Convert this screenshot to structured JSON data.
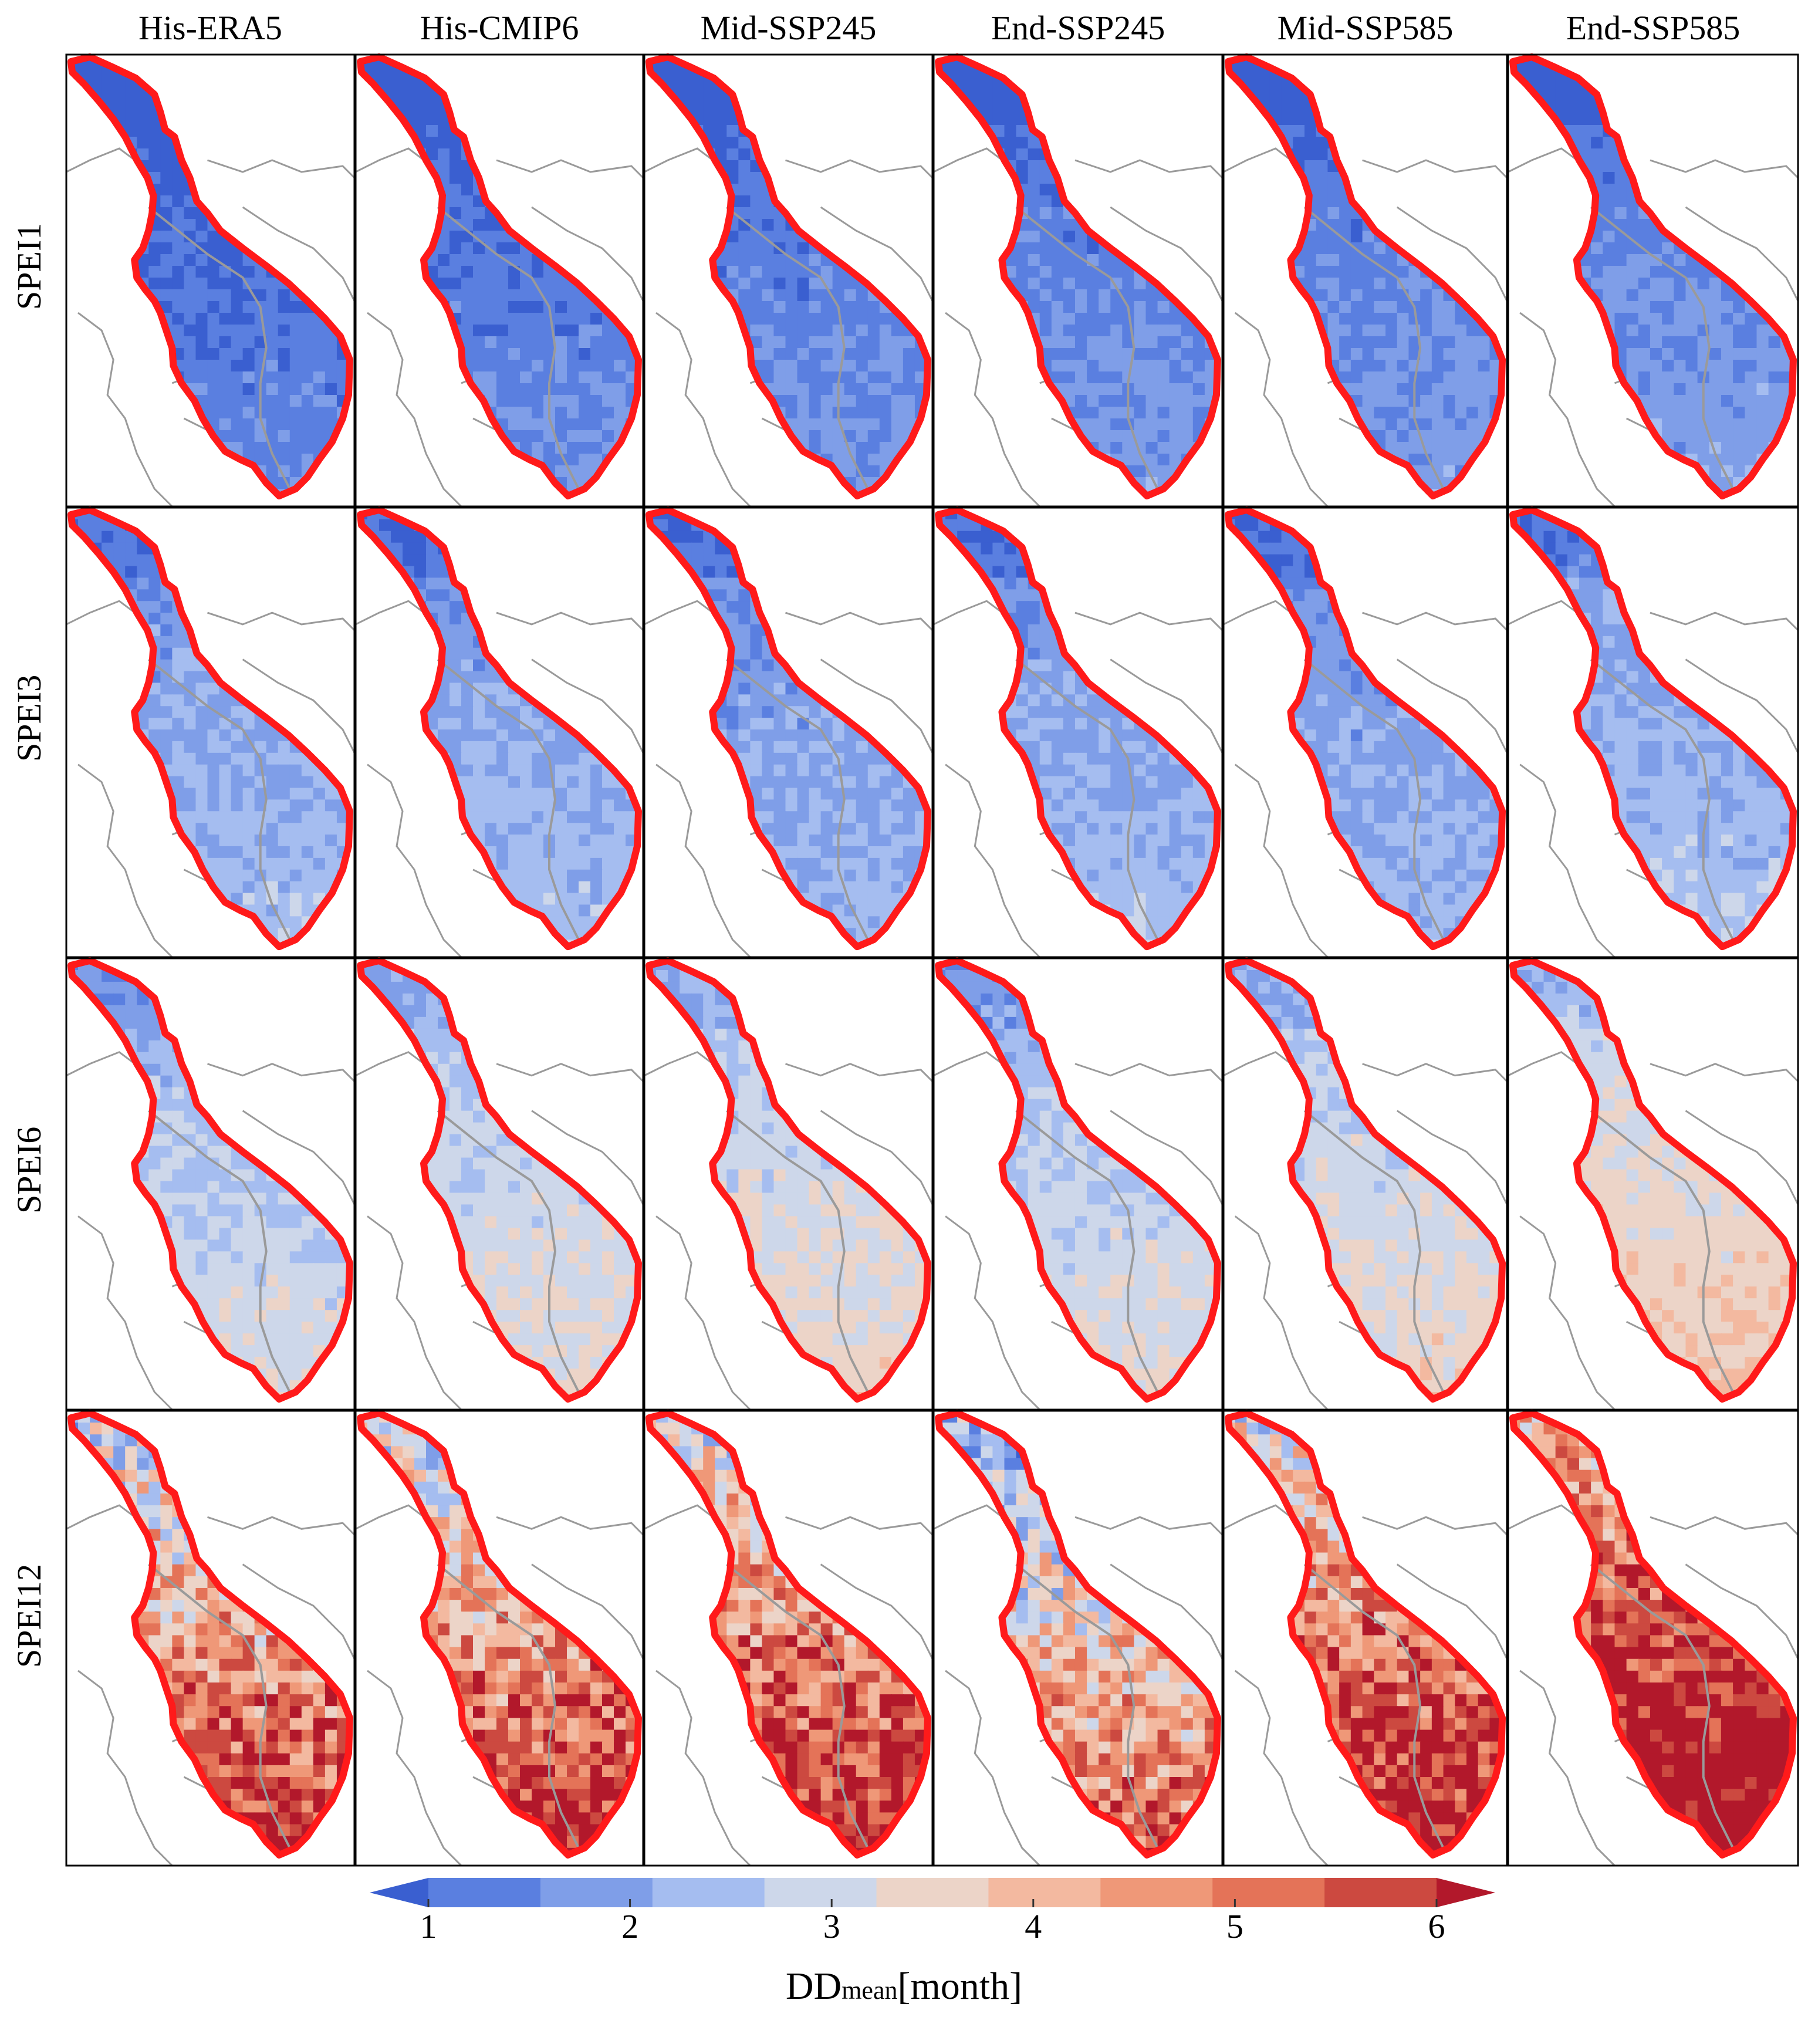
{
  "columns": [
    "His-ERA5",
    "His-CMIP6",
    "Mid-SSP245",
    "End-SSP245",
    "Mid-SSP585",
    "End-SSP585"
  ],
  "rows": [
    "SPEI1",
    "SPEI3",
    "SPEI6",
    "SPEI12"
  ],
  "colorbar": {
    "title_main": "DD",
    "title_sub": "mean",
    "title_unit": "[month]",
    "ticks": [
      "1",
      "2",
      "3",
      "4",
      "5",
      "6"
    ],
    "range": [
      1,
      6
    ],
    "extend": "both",
    "colors": [
      "#3a5fd0",
      "#5a7fe0",
      "#7f9ee8",
      "#a5bdf0",
      "#cdd7ea",
      "#ecd4c8",
      "#f3b9a0",
      "#ef9878",
      "#e47358",
      "#cc4940",
      "#b2182b"
    ]
  },
  "map_style": {
    "basin_outline": "#ff1a1a",
    "country_borders": "#9a9a9a",
    "background": "#ffffff"
  },
  "panels_mean_level": [
    [
      1.5,
      1.6,
      1.7,
      1.8,
      1.8,
      1.9
    ],
    [
      2.3,
      2.3,
      2.2,
      2.3,
      2.2,
      2.4
    ],
    [
      2.8,
      3.0,
      3.1,
      2.9,
      3.1,
      3.4
    ],
    [
      4.3,
      4.4,
      4.6,
      3.7,
      4.7,
      5.4
    ]
  ]
}
